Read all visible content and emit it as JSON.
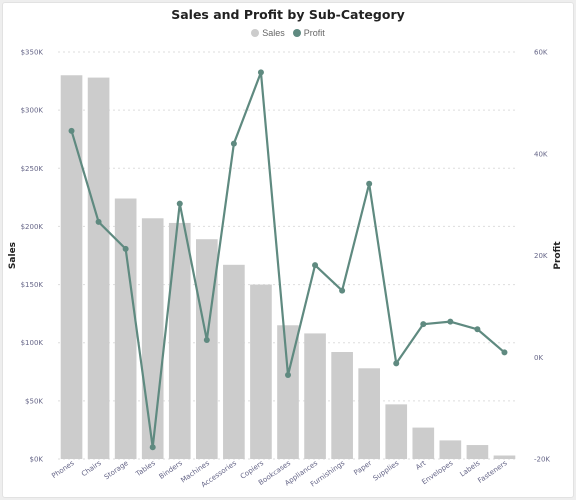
{
  "chart_data": {
    "type": "bar",
    "title": "Sales and Profit by Sub-Category",
    "xlabel": "",
    "ylabel": "Sales",
    "y2label": "Profit",
    "categories": [
      "Phones",
      "Chairs",
      "Storage",
      "Tables",
      "Binders",
      "Machines",
      "Accessories",
      "Copiers",
      "Bookcases",
      "Appliances",
      "Furnishings",
      "Paper",
      "Supplies",
      "Art",
      "Envelopes",
      "Labels",
      "Fasteners"
    ],
    "series": [
      {
        "name": "Sales",
        "type": "bar",
        "axis": "left",
        "color": "#cccccc",
        "values": [
          330000,
          328000,
          224000,
          207000,
          203000,
          189000,
          167000,
          150000,
          115000,
          108000,
          92000,
          78000,
          47000,
          27000,
          16000,
          12000,
          3000
        ]
      },
      {
        "name": "Profit",
        "type": "line",
        "axis": "right",
        "color": "#5f8a80",
        "values": [
          44500,
          26600,
          21300,
          -17700,
          30200,
          3400,
          42000,
          56000,
          -3500,
          18100,
          13100,
          34100,
          -1200,
          6500,
          7000,
          5500,
          950
        ]
      }
    ],
    "ylim": [
      0,
      350000
    ],
    "y2lim": [
      -20000,
      60000
    ],
    "yticks": [
      "$0K",
      "$50K",
      "$100K",
      "$150K",
      "$200K",
      "$250K",
      "$300K",
      "$350K"
    ],
    "y2ticks": [
      "-20K",
      "0K",
      "20K",
      "40K",
      "60K"
    ],
    "legend": "top-center",
    "grid": true
  }
}
